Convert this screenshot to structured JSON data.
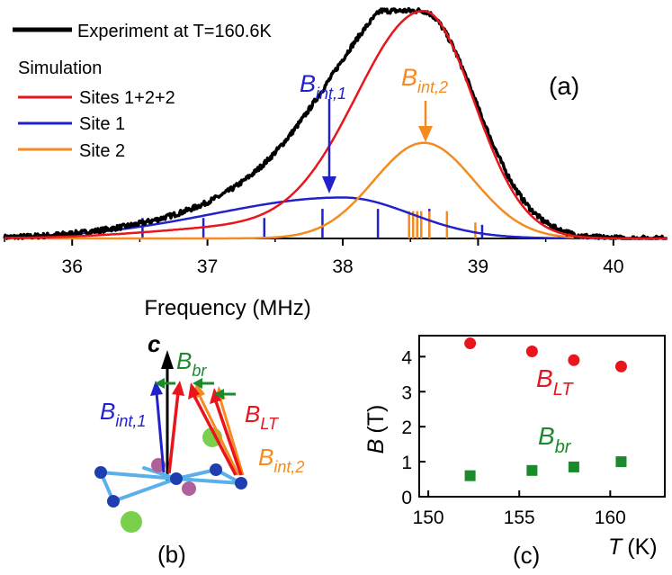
{
  "chart_data": [
    {
      "type": "line",
      "panel": "(a)",
      "xlabel": "Frequency (MHz)",
      "xlim": [
        35.5,
        40.4
      ],
      "xticks": [
        "36",
        "37",
        "38",
        "39",
        "40"
      ],
      "xtick_values": [
        36,
        37,
        38,
        39,
        40
      ],
      "legend": {
        "experiment": "Experiment at T=160.6K",
        "simulation_header": "Simulation",
        "entries": [
          "Sites 1+2+2",
          "Site 1",
          "Site 2"
        ]
      },
      "annotations": {
        "b_int1": {
          "main": "B",
          "sub": "int,1",
          "at_mhz": 37.85
        },
        "b_int2": {
          "main": "B",
          "sub": "int,2",
          "at_mhz": 38.58
        }
      },
      "series": [
        {
          "name": "Experiment at T=160.6K",
          "peak_mhz": 38.58,
          "peak_rel": 1.0
        },
        {
          "name": "Sites 1+2+2",
          "peak_mhz": 38.6,
          "peak_rel": 0.99
        },
        {
          "name": "Site 1",
          "peak_mhz": 38.0,
          "peak_rel": 0.18
        },
        {
          "name": "Site 2",
          "peak_mhz": 38.6,
          "peak_rel": 0.42
        }
      ],
      "stick_lines": {
        "site1_mhz": [
          36.52,
          36.97,
          37.42,
          37.85,
          38.26,
          38.64,
          39.03
        ],
        "site1_heights": [
          0.09,
          0.09,
          0.09,
          0.13,
          0.13,
          0.13,
          0.06
        ],
        "site2_mhz": [
          38.49,
          38.52,
          38.55,
          38.58,
          38.64,
          38.77,
          38.98
        ],
        "site2_heights": [
          0.12,
          0.12,
          0.12,
          0.12,
          0.12,
          0.12,
          0.07
        ]
      }
    },
    {
      "type": "scatter",
      "panel": "(c)",
      "xlabel_main": "T",
      "xlabel_unit": "(K)",
      "ylabel_main": "B",
      "ylabel_unit": "(T)",
      "xlim": [
        149.5,
        163
      ],
      "ylim": [
        0,
        4.6
      ],
      "xticks": [
        "150",
        "155",
        "160"
      ],
      "xtick_values": [
        150,
        155,
        160
      ],
      "yticks": [
        "0",
        "1",
        "2",
        "3",
        "4"
      ],
      "ytick_values": [
        0,
        1,
        2,
        3,
        4
      ],
      "series": [
        {
          "name": "B_LT",
          "label_main": "B",
          "label_sub": "LT",
          "marker": "circle",
          "x": [
            152.3,
            155.7,
            158.0,
            160.6
          ],
          "y": [
            4.38,
            4.15,
            3.9,
            3.72
          ]
        },
        {
          "name": "B_br",
          "label_main": "B",
          "label_sub": "br",
          "marker": "square",
          "x": [
            152.3,
            155.7,
            158.0,
            160.6
          ],
          "y": [
            0.6,
            0.75,
            0.85,
            1.0
          ]
        }
      ]
    }
  ],
  "panel_b": {
    "label": "(b)",
    "axis_label": "c",
    "b_br": {
      "main": "B",
      "sub": "br"
    },
    "b_int1": {
      "main": "B",
      "sub": "int,1"
    },
    "b_lt": {
      "main": "B",
      "sub": "LT"
    },
    "b_int2": {
      "main": "B",
      "sub": "int,2"
    }
  },
  "colors": {
    "experiment": "#000000",
    "sum": "#e8161c",
    "site1": "#2222cc",
    "site2": "#f58a1f",
    "green": "#1a8a2a",
    "atom_blue": "#1f3fb0",
    "bond": "#5ab0e8",
    "atom_pink": "#b0609a",
    "atom_green": "#7ad04a"
  }
}
